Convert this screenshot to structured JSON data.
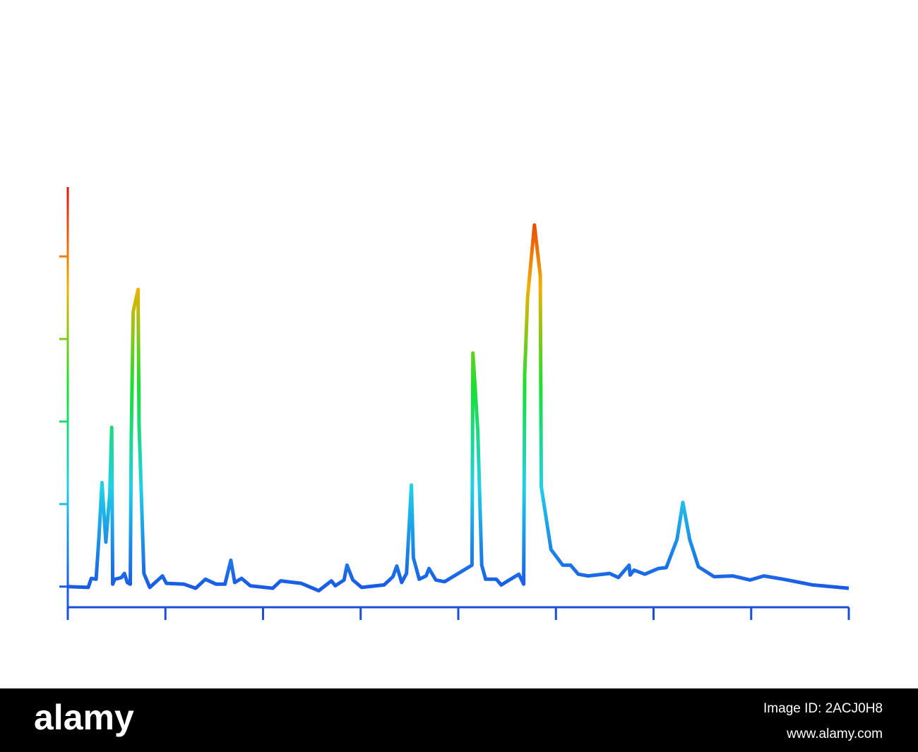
{
  "chart_data": {
    "type": "line",
    "x": [
      0,
      0.21,
      0.24,
      0.29,
      0.32,
      0.35,
      0.39,
      0.43,
      0.45,
      0.46,
      0.48,
      0.52,
      0.55,
      0.58,
      0.61,
      0.64,
      0.65,
      0.67,
      0.72,
      0.73,
      0.78,
      0.84,
      0.97,
      1.01,
      1.19,
      1.31,
      1.41,
      1.52,
      1.61,
      1.67,
      1.71,
      1.78,
      1.87,
      2.1,
      2.18,
      2.39,
      2.57,
      2.7,
      2.74,
      2.83,
      2.86,
      2.92,
      3.01,
      3.24,
      3.33,
      3.37,
      3.42,
      3.47,
      3.52,
      3.54,
      3.6,
      3.67,
      3.7,
      3.77,
      3.86,
      4.14,
      4.15,
      4.2,
      4.24,
      4.28,
      4.39,
      4.44,
      4.62,
      4.67,
      4.68,
      4.71,
      4.78,
      4.84,
      4.85,
      4.95,
      5.07,
      5.15,
      5.23,
      5.33,
      5.55,
      5.64,
      5.75,
      5.76,
      5.8,
      5.91,
      6.05,
      6.13,
      6.24,
      6.3,
      6.37,
      6.46,
      6.62,
      6.81,
      6.99,
      7.13,
      7.33,
      7.63,
      8
    ],
    "values": [
      0,
      -0.01,
      0.1,
      0.09,
      0.61,
      1.26,
      0.54,
      1.12,
      1.93,
      0.03,
      0.09,
      0.1,
      0.11,
      0.16,
      0.05,
      0.03,
      1.8,
      3.33,
      3.6,
      1.97,
      0.16,
      -0.01,
      0.13,
      0.04,
      0.03,
      -0.02,
      0.09,
      0.03,
      0.03,
      0.32,
      0.05,
      0.1,
      0.01,
      -0.02,
      0.07,
      0.04,
      -0.05,
      0.07,
      0.01,
      0.08,
      0.26,
      0.08,
      -0.01,
      0.02,
      0.12,
      0.25,
      0.05,
      0.16,
      1.23,
      0.35,
      0.09,
      0.13,
      0.22,
      0.08,
      0.06,
      0.26,
      2.83,
      1.89,
      0.26,
      0.09,
      0.09,
      0.02,
      0.15,
      0.03,
      2.57,
      3.51,
      4.38,
      3.77,
      1.21,
      0.45,
      0.26,
      0.26,
      0.15,
      0.13,
      0.16,
      0.11,
      0.26,
      0.14,
      0.2,
      0.15,
      0.22,
      0.23,
      0.57,
      1.02,
      0.57,
      0.24,
      0.12,
      0.13,
      0.08,
      0.13,
      0.09,
      0.02,
      -0.02
    ],
    "colors": [
      "#1a5be6",
      "#20d0e8",
      "#18e030",
      "#f0b000",
      "#e81010"
    ],
    "axis_color": "#1a4fd8",
    "xlim": [
      0,
      8
    ],
    "xticks": [
      0,
      1,
      2,
      3,
      4,
      5,
      6,
      7,
      8
    ],
    "ylim": [
      -0.25,
      4.84
    ],
    "yticks": [
      0,
      1,
      2,
      3,
      4
    ]
  },
  "footer": {
    "brand": "alamy",
    "image_id": "Image ID: 2ACJ0H8",
    "url": "www.alamy.com"
  }
}
